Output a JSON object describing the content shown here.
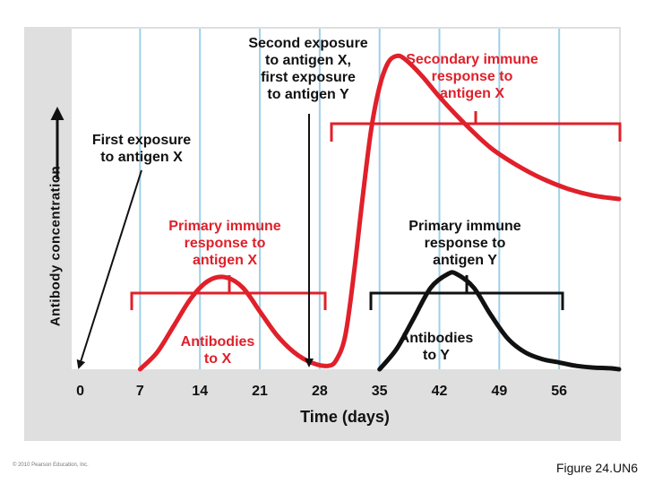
{
  "chart_data": {
    "type": "line",
    "xlabel": "Time (days)",
    "ylabel": "Antibody concentration",
    "x_ticks": [
      0,
      7,
      14,
      21,
      28,
      35,
      42,
      49,
      56
    ],
    "xlim": [
      -1,
      63
    ],
    "ylim": [
      0,
      1
    ],
    "grid": true,
    "series": [
      {
        "name": "Antibodies to X",
        "color": "#e0202a",
        "x": [
          7,
          9,
          11,
          13,
          15,
          17,
          19,
          21,
          23,
          25,
          27,
          29,
          30,
          31,
          32,
          33,
          34,
          35,
          36,
          37,
          38,
          40,
          42,
          45,
          48,
          51,
          54,
          57,
          60,
          63
        ],
        "y": [
          0.0,
          0.05,
          0.13,
          0.21,
          0.26,
          0.27,
          0.24,
          0.17,
          0.1,
          0.05,
          0.02,
          0.01,
          0.03,
          0.1,
          0.28,
          0.5,
          0.7,
          0.83,
          0.9,
          0.92,
          0.91,
          0.86,
          0.8,
          0.72,
          0.65,
          0.6,
          0.56,
          0.53,
          0.51,
          0.5
        ]
      },
      {
        "name": "Antibodies to Y",
        "color": "#111111",
        "x": [
          35,
          37,
          39,
          41,
          43,
          44,
          46,
          48,
          50,
          52,
          54,
          56,
          58,
          60,
          62,
          63
        ],
        "y": [
          0.0,
          0.06,
          0.15,
          0.24,
          0.28,
          0.28,
          0.24,
          0.16,
          0.09,
          0.05,
          0.03,
          0.02,
          0.01,
          0.005,
          0.003,
          0.0
        ]
      }
    ],
    "annotations": {
      "first_exposure_x": "First exposure\nto antigen X",
      "second_exposure": "Second exposure\nto antigen X,\nfirst exposure\nto antigen Y",
      "secondary_x": "Secondary immune\nresponse to\nantigen X",
      "primary_x": "Primary immune\nresponse to\nantigen X",
      "primary_y": "Primary immune\nresponse to\nantigen Y",
      "antibodies_x": "Antibodies\nto X",
      "antibodies_y": "Antibodies\nto Y"
    }
  },
  "labels": {
    "first_exposure_x": [
      "First exposure",
      "to antigen X"
    ],
    "second_exposure": [
      "Second exposure",
      "to antigen X,",
      "first exposure",
      "to antigen Y"
    ],
    "secondary_x": [
      "Secondary immune",
      "response to",
      "antigen X"
    ],
    "primary_x": [
      "Primary immune",
      "response to",
      "antigen X"
    ],
    "primary_y": [
      "Primary immune",
      "response to",
      "antigen Y"
    ],
    "antibodies_x": [
      "Antibodies",
      "to X"
    ],
    "antibodies_y": [
      "Antibodies",
      "to Y"
    ]
  },
  "footer": {
    "copyright": "© 2010 Pearson Education, Inc.",
    "figure": "Figure 24.UN6"
  },
  "colors": {
    "panel": "#dfdfdf",
    "grid": "#9fd0e8",
    "red": "#e0202a",
    "black": "#111111"
  }
}
